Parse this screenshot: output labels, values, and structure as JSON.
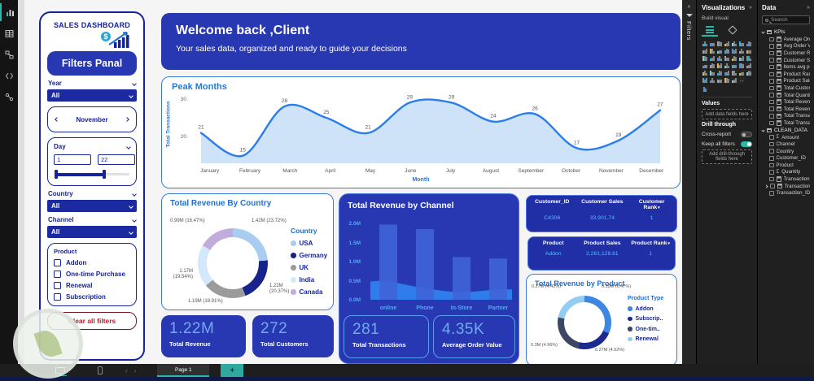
{
  "left_toolbar": {
    "icons": [
      "report-view",
      "table-view",
      "model-view",
      "dax-query-view",
      "deployment-pipelines"
    ]
  },
  "filter_panel": {
    "title": "SALES DASHBOARD",
    "header": "Filters Panal",
    "year": {
      "label": "Year",
      "value": "All"
    },
    "month_nav": {
      "value": "November"
    },
    "day": {
      "label": "Day",
      "from": "1",
      "to": "22"
    },
    "country": {
      "label": "Country",
      "value": "All"
    },
    "channel": {
      "label": "Channel",
      "value": "All"
    },
    "product": {
      "label": "Product",
      "options": [
        "Addon",
        "One-time Purchase",
        "Renewal",
        "Subscription"
      ]
    },
    "clear_button": "Clear all filters"
  },
  "welcome": {
    "title": "Welcome back ,Client",
    "subtitle": "Your sales data, organized and ready to guide your decisions"
  },
  "chart_data": [
    {
      "id": "peak_months",
      "type": "area",
      "title": "Peak Months",
      "xlabel": "Month",
      "ylabel": "Total Transactions",
      "categories": [
        "January",
        "February",
        "March",
        "April",
        "May",
        "June",
        "July",
        "August",
        "September",
        "October",
        "November",
        "December"
      ],
      "values": [
        21,
        15,
        28,
        25,
        21,
        29,
        29,
        24,
        26,
        17,
        19,
        27
      ],
      "yticks": [
        20,
        30
      ],
      "ylim": [
        13,
        31
      ],
      "grid": false,
      "line_color": "#2b7de9",
      "fill_color": "#cfe3f8"
    },
    {
      "id": "revenue_by_country",
      "type": "donut",
      "title": "Total Revenue By Country",
      "legend_title": "Country",
      "legend_position": "right",
      "segments": [
        {
          "label": "USA",
          "value": 1.42,
          "data_label": "1.42M (23.72%)",
          "color": "#a9cdf0"
        },
        {
          "label": "Germany",
          "value": 1.22,
          "data_label": "1.22M (20.37%)",
          "color": "#16248b"
        },
        {
          "label": "UK",
          "value": 1.19,
          "data_label": "1.19M (19.91%)",
          "color": "#9b9b9b"
        },
        {
          "label": "India",
          "value": 1.17,
          "data_label": "1.17M (19.54%)",
          "color": "#d3e8fa"
        },
        {
          "label": "Canada",
          "value": 0.99,
          "data_label": "0.99M (16.47%)",
          "color": "#c2abdd"
        }
      ]
    },
    {
      "id": "revenue_by_channel",
      "type": "bar",
      "title": "Total Revenue by Channel",
      "categories": [
        "online",
        "Phone",
        "In-Store",
        "Partner"
      ],
      "series": [
        {
          "name": "revenue_bars",
          "values": [
            1.97,
            1.85,
            1.12,
            1.08
          ]
        },
        {
          "name": "overlay_area",
          "values": [
            0.48,
            0.3,
            0.2,
            0.27
          ]
        }
      ],
      "yticks": [
        "0.0M",
        "0.5M",
        "1.0M",
        "1.5M",
        "2.0M"
      ],
      "ylim": [
        0,
        2.2
      ],
      "grid": false,
      "bar_color": "#3f64d9",
      "area_color": "#2f80ef"
    },
    {
      "id": "revenue_by_product",
      "type": "donut",
      "title": "Total Revenue by Product",
      "legend_title": "Product Type",
      "legend_position": "right",
      "segments": [
        {
          "label": "Addon",
          "value": 0.39,
          "data_label": "0.39M (6.47%)",
          "color": "#3d86e2"
        },
        {
          "label": "Subscrip..",
          "value": 0.27,
          "data_label": "0.27M (4.52%)",
          "color": "#1b2a8f"
        },
        {
          "label": "One-tim..",
          "value": 0.3,
          "data_label": "0.3M (4.96%)",
          "color": "#3c4766"
        },
        {
          "label": "Renewal",
          "value": 0.27,
          "data_label": "0.27M (4.42%)",
          "color": "#93cdf2"
        }
      ]
    }
  ],
  "tables": {
    "customer": {
      "headers": [
        "Customer_ID",
        "Customer Sales",
        "Customer Rank"
      ],
      "sorted_by": "Customer Rank",
      "rows": [
        [
          "C4306",
          "33,901.74",
          "1"
        ]
      ]
    },
    "product": {
      "headers": [
        "Product",
        "Product Sales",
        "Product Rank"
      ],
      "sorted_by": "Product Rank",
      "rows": [
        [
          "Addon",
          "2,261,128.81",
          "1"
        ]
      ]
    }
  },
  "kpis": [
    {
      "value": "1.22M",
      "label": "Total Revenue"
    },
    {
      "value": "272",
      "label": "Total Customers"
    },
    {
      "value": "281",
      "label": "Total Transactions"
    },
    {
      "value": "4.35K",
      "label": "Average Order Value"
    }
  ],
  "filters_strip": {
    "label": "Filters"
  },
  "visualizations_pane": {
    "title": "Visualizations",
    "subtitle": "Build visual",
    "values_label": "Values",
    "values_placeholder": "Add data fields here",
    "drill_label": "Drill through",
    "cross_report_label": "Cross-report",
    "keep_filters_label": "Keep all filters",
    "drill_placeholder": "Add drill-through fields here",
    "more_icon": "...",
    "icon_names": [
      "stacked-bar-chart",
      "stacked-column-chart",
      "clustered-bar-chart",
      "clustered-column-chart",
      "100-stacked-bar-chart",
      "100-stacked-column-chart",
      "line-chart",
      "area-chart",
      "stacked-area-chart",
      "line-and-stacked-column-chart",
      "line-and-clustered-column-chart",
      "ribbon-chart",
      "waterfall-chart",
      "funnel-chart",
      "scatter-chart",
      "pie-chart",
      "donut-chart",
      "treemap",
      "map",
      "filled-map",
      "shape-map",
      "azure-map",
      "gauge",
      "card",
      "multi-row-card",
      "kpi",
      "slicer",
      "table",
      "matrix",
      "r-script-visual",
      "python-visual",
      "key-influencers",
      "decomposition-tree",
      "qa-visual",
      "narrative",
      "metrics",
      "paginated-report",
      "arcgis-map",
      "power-apps",
      "power-automate"
    ]
  },
  "data_pane": {
    "title": "Data",
    "search_placeholder": "Search",
    "groups": [
      {
        "name": "KPIs",
        "fields": [
          {
            "name": "Average Order ...",
            "icon": "calculator-icon"
          },
          {
            "name": "Avg Order Valu...",
            "icon": "calculator-icon"
          },
          {
            "name": "Customer Rank",
            "icon": "calculator-icon"
          },
          {
            "name": "Customer Sales",
            "icon": "calculator-icon"
          },
          {
            "name": "Items avg per t...",
            "icon": "calculator-icon"
          },
          {
            "name": "Product Rank",
            "icon": "calculator-icon"
          },
          {
            "name": "Product Sales",
            "icon": "calculator-icon"
          },
          {
            "name": "Total Customers",
            "icon": "calculator-icon"
          },
          {
            "name": "Total Quantity",
            "icon": "calculator-icon"
          },
          {
            "name": "Total Revenue",
            "icon": "calculator-icon"
          },
          {
            "name": "Total Revenue b...",
            "icon": "calculator-icon"
          },
          {
            "name": "Total Transactio...",
            "icon": "calculator-icon"
          },
          {
            "name": "Total Transactio...",
            "icon": "calculator-icon"
          }
        ]
      },
      {
        "name": "CLEAN_DATA",
        "fields": [
          {
            "name": "Amount",
            "icon": "sigma-icon"
          },
          {
            "name": "Channel"
          },
          {
            "name": "Country"
          },
          {
            "name": "Customer_ID"
          },
          {
            "name": "Product"
          },
          {
            "name": "Quantity",
            "icon": "sigma-icon"
          },
          {
            "name": "Transaction Value",
            "icon": "calculator-icon"
          },
          {
            "name": "Transaction_Date",
            "icon": "calendar-icon",
            "expandable": true
          },
          {
            "name": "Transaction_ID"
          }
        ]
      }
    ]
  },
  "status_bar": {
    "page_tab": "Page 1",
    "add_page": "+"
  }
}
